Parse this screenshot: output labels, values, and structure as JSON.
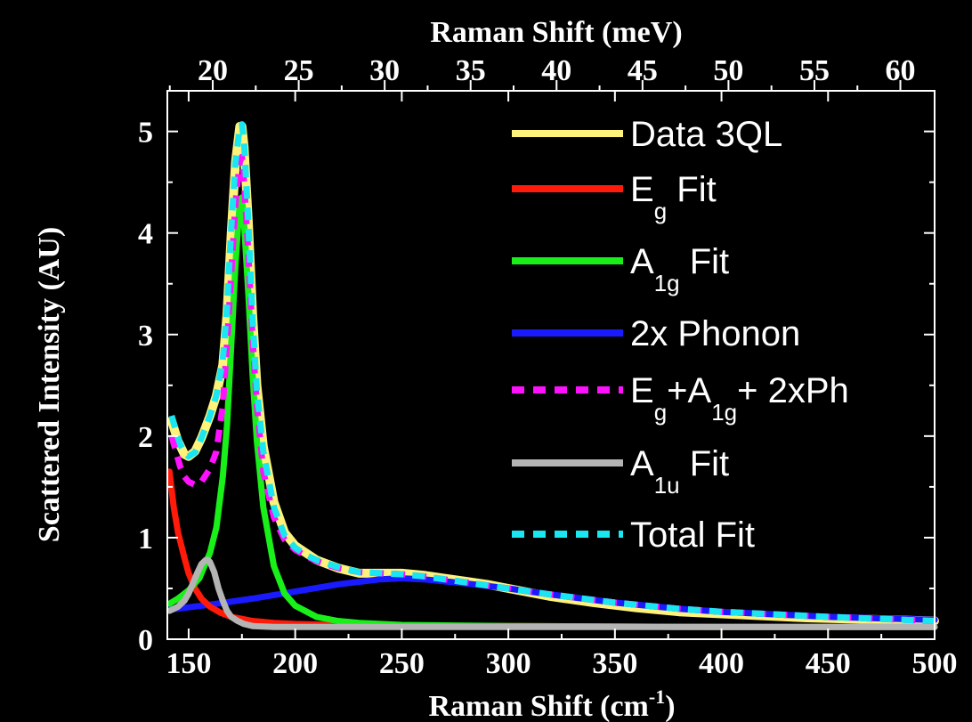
{
  "chart_data": {
    "type": "line",
    "xlabel_bottom": {
      "main": "Raman Shift (cm",
      "sup": "-1",
      "end": ")"
    },
    "xlabel_top": "Raman Shift (meV)",
    "ylabel": "Scattered Intensity (AU)",
    "xlim": [
      140,
      500
    ],
    "ylim": [
      0,
      5.4
    ],
    "xticks_bottom": [
      150,
      200,
      250,
      300,
      350,
      400,
      450,
      500
    ],
    "xticks_top": [
      20,
      25,
      30,
      35,
      40,
      45,
      50,
      55,
      60
    ],
    "yticks": [
      0,
      1,
      2,
      3,
      4,
      5
    ],
    "legend_position": "top-right",
    "grid": false,
    "series": [
      {
        "name": "Data 3QL",
        "legend": [
          {
            "t": "Data 3QL"
          }
        ],
        "color": "#fff27a",
        "dash": false,
        "x": [
          142,
          145,
          148,
          150,
          153,
          156,
          160,
          163,
          166,
          168,
          170,
          172,
          174,
          175,
          176,
          178,
          180,
          182,
          185,
          190,
          195,
          200,
          205,
          210,
          220,
          230,
          240,
          250,
          260,
          270,
          280,
          290,
          300,
          320,
          340,
          360,
          380,
          400,
          420,
          440,
          460,
          480,
          500
        ],
        "y": [
          2.15,
          1.95,
          1.82,
          1.8,
          1.85,
          1.98,
          2.2,
          2.4,
          2.7,
          3.2,
          4.0,
          4.7,
          5.05,
          5.05,
          4.85,
          4.1,
          3.2,
          2.5,
          1.9,
          1.35,
          1.05,
          0.92,
          0.85,
          0.78,
          0.7,
          0.65,
          0.65,
          0.65,
          0.63,
          0.6,
          0.57,
          0.54,
          0.5,
          0.42,
          0.36,
          0.31,
          0.27,
          0.25,
          0.23,
          0.21,
          0.2,
          0.19,
          0.18
        ]
      },
      {
        "name": "Eg Fit",
        "legend": [
          {
            "t": "E"
          },
          {
            "t": "g",
            "sub": true
          },
          {
            "t": " Fit"
          }
        ],
        "color": "#ff1a0a",
        "dash": false,
        "x": [
          141,
          143,
          145,
          148,
          150,
          153,
          156,
          160,
          165,
          170,
          175,
          180,
          190,
          200,
          220,
          250,
          300,
          400,
          500
        ],
        "y": [
          1.65,
          1.3,
          1.05,
          0.8,
          0.65,
          0.5,
          0.4,
          0.32,
          0.26,
          0.22,
          0.2,
          0.18,
          0.16,
          0.15,
          0.14,
          0.13,
          0.13,
          0.12,
          0.12
        ]
      },
      {
        "name": "A1g Fit",
        "legend": [
          {
            "t": "A"
          },
          {
            "t": "1g",
            "sub": true
          },
          {
            "t": " Fit"
          }
        ],
        "color": "#19f019",
        "dash": false,
        "x": [
          141,
          145,
          150,
          155,
          160,
          163,
          166,
          168,
          170,
          172,
          174,
          175,
          176,
          178,
          180,
          182,
          185,
          190,
          195,
          200,
          210,
          220,
          230,
          250,
          300,
          400,
          500
        ],
        "y": [
          0.35,
          0.4,
          0.48,
          0.6,
          0.85,
          1.1,
          1.6,
          2.1,
          2.9,
          3.7,
          4.3,
          4.35,
          4.1,
          3.4,
          2.6,
          1.95,
          1.3,
          0.72,
          0.45,
          0.33,
          0.22,
          0.18,
          0.16,
          0.14,
          0.13,
          0.12,
          0.12
        ]
      },
      {
        "name": "2x Phonon",
        "legend": [
          {
            "t": "2x Phonon"
          }
        ],
        "color": "#1a1aff",
        "dash": false,
        "x": [
          141,
          160,
          180,
          200,
          220,
          240,
          250,
          260,
          280,
          300,
          320,
          350,
          380,
          400,
          450,
          500
        ],
        "y": [
          0.29,
          0.34,
          0.4,
          0.47,
          0.54,
          0.59,
          0.6,
          0.59,
          0.55,
          0.5,
          0.44,
          0.36,
          0.3,
          0.27,
          0.22,
          0.19
        ]
      },
      {
        "name": "Eg+A1g+ 2xPh",
        "legend": [
          {
            "t": "E"
          },
          {
            "t": "g",
            "sub": true
          },
          {
            "t": "+A"
          },
          {
            "t": "1g",
            "sub": true
          },
          {
            "t": "+ 2xPh"
          }
        ],
        "color": "#ff10ff",
        "dash": true,
        "x": [
          142,
          144,
          146,
          148,
          150,
          153,
          156,
          160,
          163,
          166,
          168,
          170,
          172,
          174,
          175,
          176,
          178,
          180,
          182,
          185,
          190,
          195,
          200,
          205,
          210,
          220,
          230,
          240,
          250,
          260,
          280,
          300,
          320,
          350,
          380,
          400,
          450,
          500
        ],
        "y": [
          2.0,
          1.85,
          1.7,
          1.6,
          1.55,
          1.52,
          1.55,
          1.68,
          1.85,
          2.3,
          2.9,
          3.6,
          4.3,
          4.7,
          4.75,
          4.5,
          3.8,
          2.95,
          2.3,
          1.65,
          1.2,
          0.98,
          0.88,
          0.82,
          0.77,
          0.7,
          0.66,
          0.65,
          0.64,
          0.62,
          0.56,
          0.5,
          0.44,
          0.36,
          0.3,
          0.27,
          0.22,
          0.18
        ]
      },
      {
        "name": "A1u Fit",
        "legend": [
          {
            "t": "A"
          },
          {
            "t": "1u",
            "sub": true
          },
          {
            "t": " Fit"
          }
        ],
        "color": "#b4b4b4",
        "dash": false,
        "x": [
          141,
          145,
          148,
          150,
          152,
          154,
          156,
          158,
          159,
          160,
          162,
          164,
          166,
          168,
          170,
          173,
          176,
          180,
          190,
          200,
          250,
          300,
          400,
          500
        ],
        "y": [
          0.28,
          0.32,
          0.38,
          0.45,
          0.55,
          0.65,
          0.74,
          0.78,
          0.78,
          0.76,
          0.66,
          0.5,
          0.38,
          0.28,
          0.22,
          0.18,
          0.15,
          0.13,
          0.12,
          0.12,
          0.12,
          0.12,
          0.12,
          0.12
        ]
      },
      {
        "name": "Total Fit",
        "legend": [
          {
            "t": "Total Fit"
          }
        ],
        "color": "#19e6f0",
        "dash": true,
        "x": [
          142,
          144,
          146,
          148,
          150,
          153,
          156,
          160,
          163,
          166,
          168,
          170,
          172,
          174,
          175,
          176,
          178,
          180,
          182,
          185,
          190,
          195,
          200,
          205,
          210,
          220,
          230,
          240,
          250,
          260,
          280,
          300,
          320,
          350,
          380,
          400,
          450,
          500
        ],
        "y": [
          2.2,
          2.05,
          1.92,
          1.84,
          1.8,
          1.84,
          1.98,
          2.2,
          2.4,
          2.75,
          3.25,
          4.05,
          4.7,
          5.05,
          5.07,
          4.9,
          4.1,
          3.15,
          2.45,
          1.85,
          1.3,
          1.02,
          0.9,
          0.83,
          0.78,
          0.71,
          0.66,
          0.65,
          0.64,
          0.62,
          0.56,
          0.5,
          0.44,
          0.36,
          0.3,
          0.27,
          0.22,
          0.18
        ]
      }
    ]
  }
}
